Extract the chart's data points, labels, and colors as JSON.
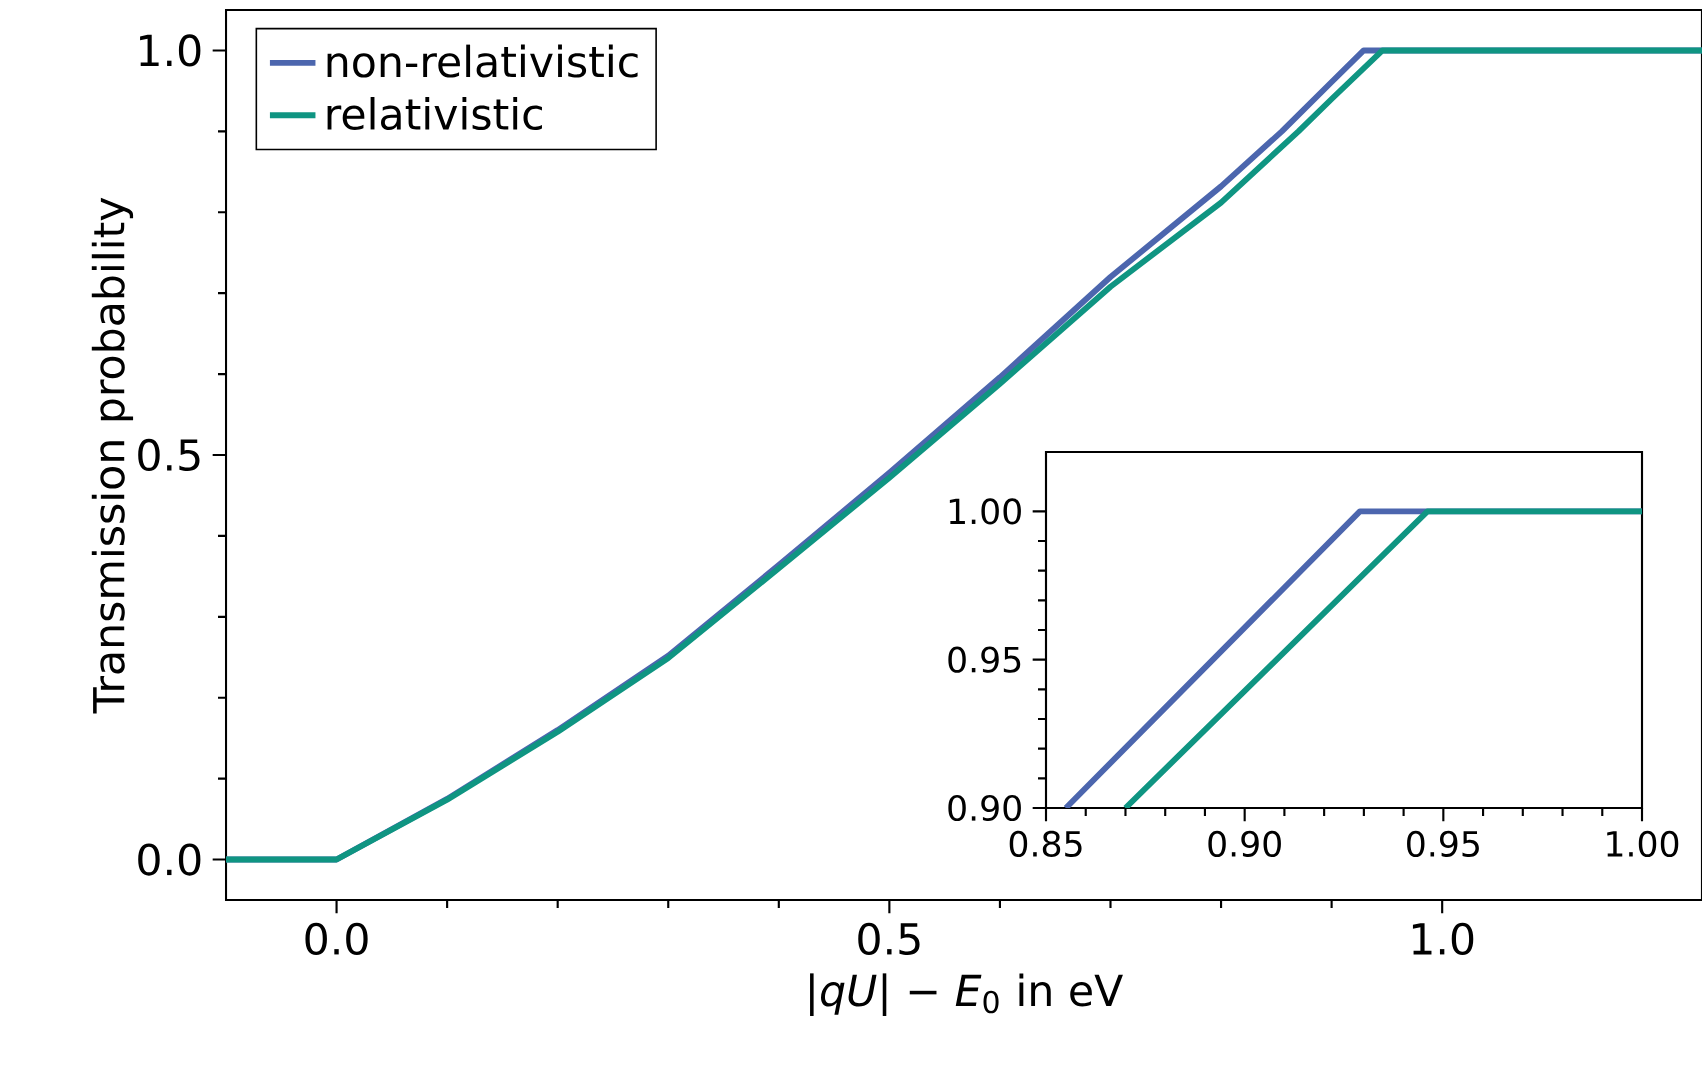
{
  "chart_data": [
    {
      "type": "line",
      "xlabel": "|*qU*| − *E*$_{0}$ in eV",
      "ylabel": "Transmission probability",
      "legend": "top left",
      "xlim": [
        -0.1,
        1.235
      ],
      "ylim": [
        -0.05,
        1.05
      ],
      "xticks": [
        {
          "value": 0,
          "label": "0.0"
        },
        0.5,
        {
          "value": 1,
          "label": "1.0"
        }
      ],
      "yticks": [
        {
          "value": 0,
          "label": "0.0"
        },
        0.5,
        {
          "value": 1,
          "label": "1.0"
        }
      ],
      "series": [
        {
          "name": "non-relativistic",
          "color": "#4c66ae",
          "x": [
            -0.1,
            0,
            0.1,
            0.2,
            0.3,
            0.4,
            0.5,
            0.6,
            0.7,
            0.8,
            0.855,
            0.9,
            0.929,
            1.235
          ],
          "values": [
            0,
            0,
            0.075,
            0.16,
            0.252,
            0.364,
            0.478,
            0.596,
            0.72,
            0.832,
            0.9,
            0.961,
            1,
            1
          ]
        },
        {
          "name": "relativistic",
          "color": "#0f9582",
          "x": [
            -0.1,
            0,
            0.1,
            0.2,
            0.3,
            0.4,
            0.5,
            0.6,
            0.7,
            0.8,
            0.87,
            0.9,
            0.946,
            1.235
          ],
          "values": [
            0,
            0,
            0.074,
            0.158,
            0.249,
            0.36,
            0.472,
            0.588,
            0.708,
            0.812,
            0.9,
            0.94,
            1,
            1
          ]
        }
      ]
    },
    {
      "type": "line",
      "xlim": [
        0.85,
        1.0
      ],
      "ylim": [
        0.9,
        1.02
      ],
      "xticks": [
        {
          "value": 0.85,
          "label": "0.85"
        },
        {
          "value": 0.9,
          "label": "0.90"
        },
        {
          "value": 0.95,
          "label": "0.95"
        },
        {
          "value": 1.0,
          "label": "1.00"
        }
      ],
      "yticks": [
        {
          "value": 0.9,
          "label": "0.90"
        },
        {
          "value": 0.95,
          "label": "0.95"
        },
        {
          "value": 1.0,
          "label": "1.00"
        }
      ],
      "series": [
        {
          "color": "#4c66ae",
          "x": [
            0.855,
            0.929,
            1.0
          ],
          "values": [
            0.9,
            1,
            1
          ]
        },
        {
          "color": "#0f9582",
          "x": [
            0.87,
            0.946,
            1.0
          ],
          "values": [
            0.9,
            1,
            1
          ]
        }
      ]
    }
  ]
}
